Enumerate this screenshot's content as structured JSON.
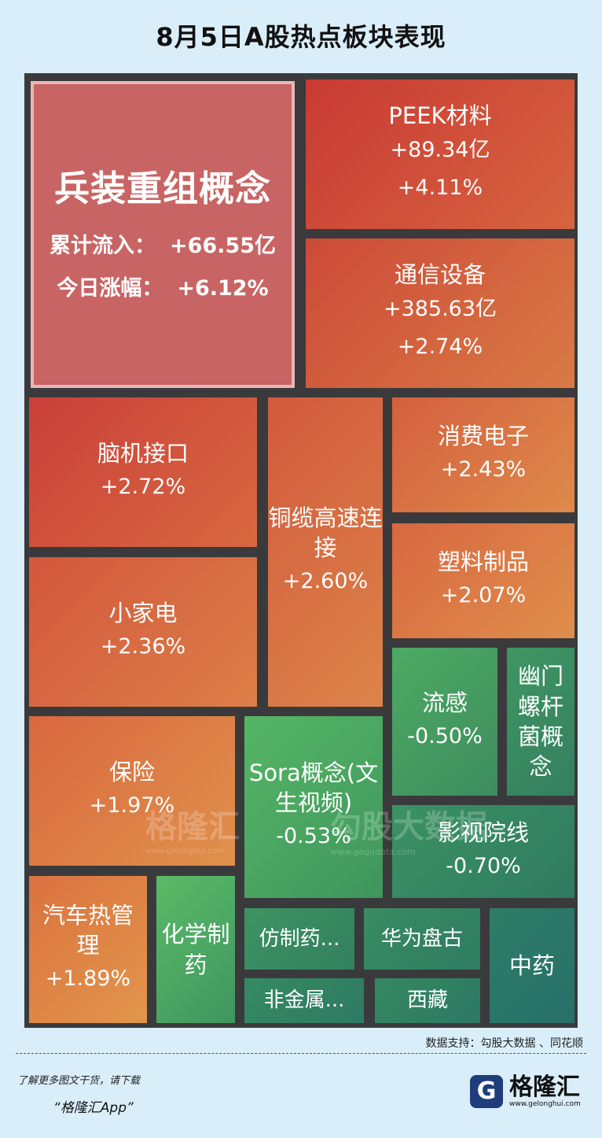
{
  "page": {
    "title": "8月5日A股热点板块表现",
    "source": "数据支持：勾股大数据 、同花顺",
    "footer_tip": "了解更多图文干货，请下载",
    "footer_app": "“格隆汇App”",
    "logo_glyph": "G",
    "logo_text": "格隆汇",
    "logo_url": "www.gelonghui.com",
    "watermark_1": "格隆汇",
    "watermark_1_url": "www.gelonghui.com",
    "watermark_2": "勾股大数据",
    "watermark_2_url": "www.gogudata.com"
  },
  "chart_data": {
    "type": "treemap",
    "title": "8月5日A股热点板块表现",
    "featured": {
      "name": "兵装重组概念",
      "flow_label": "累计流入：",
      "flow": "+66.55亿",
      "change_label": "今日涨幅：",
      "change": "+6.12%",
      "change_value": 6.12,
      "color": "#c96464",
      "border_color": "#e8b7b8"
    },
    "sectors": [
      {
        "name": "PEEK材料",
        "flow": "+89.34亿",
        "change": "+4.11%",
        "value": 4.11,
        "c1": "#c83a34",
        "c2": "#d7643f"
      },
      {
        "name": "通信设备",
        "flow": "+385.63亿",
        "change": "+2.74%",
        "value": 2.74,
        "c1": "#cc4a38",
        "c2": "#d97a45"
      },
      {
        "name": "脑机接口",
        "change": "+2.72%",
        "value": 2.72,
        "c1": "#c9403a",
        "c2": "#d8683f"
      },
      {
        "name": "铜缆高速连接",
        "change": "+2.60%",
        "value": 2.6,
        "c1": "#d25a3d",
        "c2": "#dc8449"
      },
      {
        "name": "消费电子",
        "change": "+2.43%",
        "value": 2.43,
        "c1": "#d4603f",
        "c2": "#de8a4a"
      },
      {
        "name": "小家电",
        "change": "+2.36%",
        "value": 2.36,
        "c1": "#d3573d",
        "c2": "#dc7f47"
      },
      {
        "name": "塑料制品",
        "change": "+2.07%",
        "value": 2.07,
        "c1": "#d86840",
        "c2": "#df8e4c"
      },
      {
        "name": "保险",
        "change": "+1.97%",
        "value": 1.97,
        "c1": "#d9683f",
        "c2": "#e0914c"
      },
      {
        "name": "汽车热管理",
        "change": "+1.89%",
        "value": 1.89,
        "c1": "#db723f",
        "c2": "#e1964c"
      },
      {
        "name": "流感",
        "change": "-0.50%",
        "value": -0.5,
        "c1": "#4daa62",
        "c2": "#3d8c5f"
      },
      {
        "name": "幽门螺杆菌概念",
        "change": "",
        "value": null,
        "c1": "#3f9663",
        "c2": "#347f60"
      },
      {
        "name": "Sora概念(文生视频)",
        "change": "-0.53%",
        "value": -0.53,
        "c1": "#55b664",
        "c2": "#3f955e"
      },
      {
        "name": "影视院线",
        "change": "-0.70%",
        "value": -0.7,
        "c1": "#3b9262",
        "c2": "#2f7a62"
      },
      {
        "name": "化学制药",
        "change": "",
        "value": null,
        "c1": "#5bba66",
        "c2": "#3f9660"
      },
      {
        "name": "仿制药...",
        "change": "",
        "value": null,
        "c1": "#3d9462",
        "c2": "#32805f"
      },
      {
        "name": "华为盘古",
        "change": "",
        "value": null,
        "c1": "#388c62",
        "c2": "#2f7c62"
      },
      {
        "name": "中药",
        "change": "",
        "value": null,
        "c1": "#2e7d66",
        "c2": "#27706a"
      },
      {
        "name": "非金属...",
        "change": "",
        "value": null,
        "c1": "#358a62",
        "c2": "#2e7a63"
      },
      {
        "name": "西藏",
        "change": "",
        "value": null,
        "c1": "#348862",
        "c2": "#2d7863"
      }
    ]
  }
}
